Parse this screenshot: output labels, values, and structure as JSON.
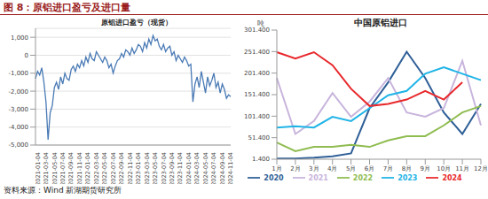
{
  "figure_title": "图 8：原铝进口盈亏及进口量",
  "source": "资料来源：Wind 新湖期货研究所",
  "chart_data": [
    {
      "type": "line",
      "title": "原铝进口盈亏（现货）",
      "categories": [
        "2021-01-04",
        null,
        null,
        null,
        "2021-03-04",
        null,
        null,
        null,
        "2021-05-04",
        null,
        null,
        null,
        "2021-07-04",
        null,
        null,
        null,
        "2021-09-04",
        null,
        null,
        null,
        "2021-11-04",
        null,
        null,
        null,
        "2022-01-04",
        null,
        null,
        null,
        "2022-03-04",
        null,
        null,
        null,
        "2022-05-04",
        null,
        null,
        null,
        "2022-07-04",
        null,
        null,
        null,
        "2022-09-04",
        null,
        null,
        null,
        "2022-11-04",
        null,
        null,
        null,
        "2023-01-04",
        null,
        null,
        null,
        "2023-03-04",
        null,
        null,
        null,
        "2023-05-04",
        null,
        null,
        null,
        "2023-07-04",
        null,
        null,
        null,
        "2023-09-04",
        null,
        null,
        null,
        "2023-11-04",
        null,
        null,
        null,
        "2024-01-04",
        null,
        null,
        null,
        "2024-03-04",
        null,
        null,
        null,
        "2024-05-04",
        null,
        null,
        null,
        "2024-07-04",
        null,
        null,
        null,
        "2024-09-04",
        null,
        null,
        null,
        "2024-11-04",
        null
      ],
      "values": [
        -1300,
        -900,
        -1100,
        -700,
        -1500,
        -2600,
        -4700,
        -3200,
        -2800,
        -1800,
        -1500,
        -1900,
        -1200,
        -1600,
        -1000,
        -1300,
        -1400,
        -800,
        -600,
        -900,
        -500,
        -700,
        -300,
        -600,
        -100,
        -400,
        100,
        -200,
        -300,
        200,
        0,
        -200,
        -400,
        -100,
        -300,
        -700,
        -500,
        -1000,
        -600,
        -300,
        -200,
        100,
        -100,
        300,
        200,
        0,
        400,
        100,
        300,
        600,
        500,
        200,
        700,
        400,
        900,
        600,
        1100,
        800,
        900,
        500,
        300,
        600,
        200,
        400,
        500,
        0,
        200,
        -300,
        0,
        -200,
        -400,
        -100,
        -300,
        -600,
        -500,
        -2600,
        -1600,
        -1200,
        -1800,
        -900,
        -1500,
        -2100,
        -1200,
        -1700,
        -1400,
        -1000,
        -1800,
        -1500,
        -2100,
        -1600,
        -1900,
        -2400,
        -2200,
        -2300
      ],
      "color": "#4a7ab5",
      "ylim": [
        -5000,
        1500
      ],
      "yticks": [
        {
          "value": 1000,
          "label": "1,000"
        },
        0,
        {
          "value": -1000,
          "label": "-1,000"
        },
        {
          "value": -2000,
          "label": "-2,000"
        },
        {
          "value": -3000,
          "label": "-3,000"
        },
        {
          "value": -4000,
          "label": "-4,000"
        },
        {
          "value": -5000,
          "label": "-5,000"
        }
      ],
      "grid": true
    },
    {
      "type": "line",
      "title": "中国原铝进口",
      "y_label": "吨",
      "categories": [
        "1月",
        "2月",
        "3月",
        "4月",
        "5月",
        "6月",
        "7月",
        "8月",
        "9月",
        "10月",
        "11月",
        "12月"
      ],
      "series": [
        {
          "name": "2020",
          "color": "#2f5f97",
          "values": [
            3,
            3,
            5,
            8,
            15,
            120,
            180,
            251,
            190,
            110,
            60,
            130
          ]
        },
        {
          "name": "2021",
          "color": "#c8b4dc",
          "values": [
            190,
            60,
            90,
            155,
            100,
            135,
            190,
            110,
            100,
            120,
            230,
            80
          ]
        },
        {
          "name": "2022",
          "color": "#8fbc50",
          "values": [
            40,
            20,
            30,
            30,
            35,
            30,
            45,
            55,
            55,
            80,
            110,
            125
          ]
        },
        {
          "name": "2023",
          "color": "#1fb4e6",
          "values": [
            75,
            78,
            75,
            100,
            90,
            120,
            150,
            160,
            200,
            215,
            200,
            185
          ]
        },
        {
          "name": "2024",
          "color": "#e8282c",
          "values": [
            250,
            235,
            250,
            220,
            165,
            125,
            130,
            140,
            160,
            140,
            180,
            null
          ]
        }
      ],
      "ylim": [
        1.4,
        301.4
      ],
      "yticks": [
        {
          "value": 1.4,
          "label": "1.400"
        },
        {
          "value": 51.4,
          "label": "51.400"
        },
        {
          "value": 101.4,
          "label": "101.400"
        },
        {
          "value": 151.4,
          "label": "151.400"
        },
        {
          "value": 201.4,
          "label": "201.400"
        },
        {
          "value": 251.4,
          "label": "251.400"
        },
        {
          "value": 301.4,
          "label": "301.400"
        }
      ],
      "legend": "bottom",
      "grid": false
    }
  ]
}
